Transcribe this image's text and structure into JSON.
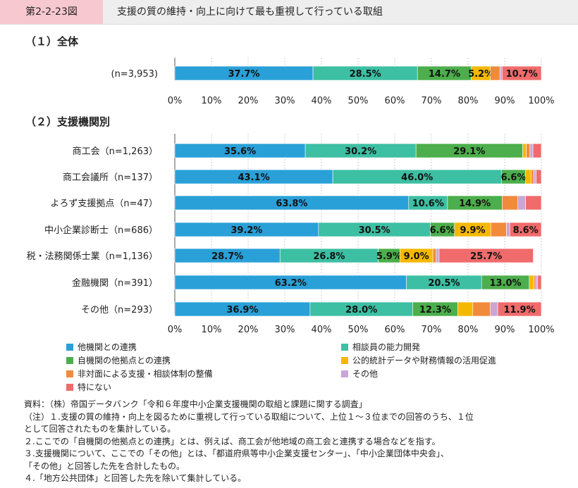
{
  "header": {
    "figure_number": "第2-2-23図",
    "title": "支援の質の維持・向上に向けて最も重視して行っている取組"
  },
  "sections": {
    "overall": "（１）全体",
    "by_org": "（２）支援機関別"
  },
  "colors": [
    "#2aa0d8",
    "#3dbfa3",
    "#4cae4c",
    "#f5b800",
    "#f28a3c",
    "#c9a6d6",
    "#f06b6b"
  ],
  "chart_data": [
    {
      "type": "bar",
      "orientation": "horizontal",
      "stacked": true,
      "normalized": true,
      "title": "（１）全体",
      "categories": [
        "(n=3,953)"
      ],
      "xlim": [
        0,
        100
      ],
      "xticks": [
        "0%",
        "10%",
        "20%",
        "30%",
        "40%",
        "50%",
        "60%",
        "70%",
        "80%",
        "90%",
        "100%"
      ],
      "series": [
        {
          "name": "他機関との連携",
          "values": [
            37.7
          ],
          "labels": [
            "37.7%"
          ]
        },
        {
          "name": "相談員の能力開発",
          "values": [
            28.5
          ],
          "labels": [
            "28.5%"
          ]
        },
        {
          "name": "自機関の他拠点との連携",
          "values": [
            14.7
          ],
          "labels": [
            "14.7%"
          ]
        },
        {
          "name": "公的統計データや財務情報の活用促進",
          "values": [
            5.2
          ],
          "labels": [
            "5.2%"
          ]
        },
        {
          "name": "非対面による支援・相談体制の整備",
          "values": [
            2.6
          ],
          "labels": [
            ""
          ]
        },
        {
          "name": "その他",
          "values": [
            0.6
          ],
          "labels": [
            ""
          ]
        },
        {
          "name": "特にない",
          "values": [
            10.7
          ],
          "labels": [
            "10.7%"
          ]
        }
      ]
    },
    {
      "type": "bar",
      "orientation": "horizontal",
      "stacked": true,
      "normalized": true,
      "title": "（２）支援機関別",
      "categories": [
        "商工会（n=1,263）",
        "商工会議所（n=137）",
        "よろず支援拠点（n=47）",
        "中小企業診断士（n=686）",
        "税・法務関係士業（n=1,136）",
        "金融機関（n=391）",
        "その他（n=293）"
      ],
      "xlim": [
        0,
        100
      ],
      "xticks": [
        "0%",
        "10%",
        "20%",
        "30%",
        "40%",
        "50%",
        "60%",
        "70%",
        "80%",
        "90%",
        "100%"
      ],
      "series": [
        {
          "name": "他機関との連携",
          "values": [
            35.6,
            43.1,
            63.8,
            39.2,
            28.7,
            63.2,
            36.9
          ],
          "labels": [
            "35.6%",
            "43.1%",
            "63.8%",
            "39.2%",
            "28.7%",
            "63.2%",
            "36.9%"
          ]
        },
        {
          "name": "相談員の能力開発",
          "values": [
            30.2,
            46.0,
            10.6,
            30.5,
            26.8,
            20.5,
            28.0
          ],
          "labels": [
            "30.2%",
            "46.0%",
            "10.6%",
            "30.5%",
            "26.8%",
            "20.5%",
            "28.0%"
          ]
        },
        {
          "name": "自機関の他拠点との連携",
          "values": [
            29.1,
            6.6,
            14.9,
            6.6,
            5.9,
            13.0,
            12.3
          ],
          "labels": [
            "29.1%",
            "6.6%",
            "14.9%",
            "6.6%",
            "5.9%",
            "13.0%",
            "12.3%"
          ]
        },
        {
          "name": "公的統計データや財務情報の活用促進",
          "values": [
            1.0,
            1.5,
            0,
            9.9,
            9.0,
            1.3,
            4.1
          ],
          "labels": [
            "",
            "",
            "",
            "9.9%",
            "9.0%",
            "",
            ""
          ]
        },
        {
          "name": "非対面による支援・相談体制の整備",
          "values": [
            1.0,
            0.7,
            4.3,
            4.3,
            0.9,
            0.5,
            4.8
          ],
          "labels": [
            "",
            "",
            "",
            "",
            "",
            "",
            ""
          ]
        },
        {
          "name": "その他",
          "values": [
            0.8,
            0.7,
            2.1,
            0.9,
            0.8,
            0.5,
            2.0
          ],
          "labels": [
            "",
            "",
            "",
            "",
            "",
            "",
            ""
          ]
        },
        {
          "name": "特にない",
          "values": [
            2.3,
            1.4,
            4.3,
            8.6,
            25.7,
            1.0,
            11.9
          ],
          "labels": [
            "",
            "",
            "",
            "8.6%",
            "25.7%",
            "",
            "11.9%"
          ]
        }
      ]
    }
  ],
  "legend": [
    "他機関との連携",
    "相談員の能力開発",
    "自機関の他拠点との連携",
    "公的統計データや財務情報の活用促進",
    "非対面による支援・相談体制の整備",
    "その他",
    "特にない"
  ],
  "notes": {
    "source": "資料：（株）帝国データバンク「令和６年度中小企業支援機関の取組と課題に関する調査」",
    "note1a": "（注）１.支援の質の維持・向上を図るために重視して行っている取組について、上位１～３位までの回答のうち、１位",
    "note1b": "として回答されたものを集計している。",
    "note2": "２.ここでの「自機関の他拠点との連携」とは、例えば、商工会が他地域の商工会と連携する場合などを指す。",
    "note3a": "３.支援機関について、ここでの「その他」とは、「都道府県等中小企業支援センター」、「中小企業団体中央会」、",
    "note3b": "「その他」と回答した先を合計したもの。",
    "note4": "４.「地方公共団体」と回答した先を除いて集計している。"
  }
}
